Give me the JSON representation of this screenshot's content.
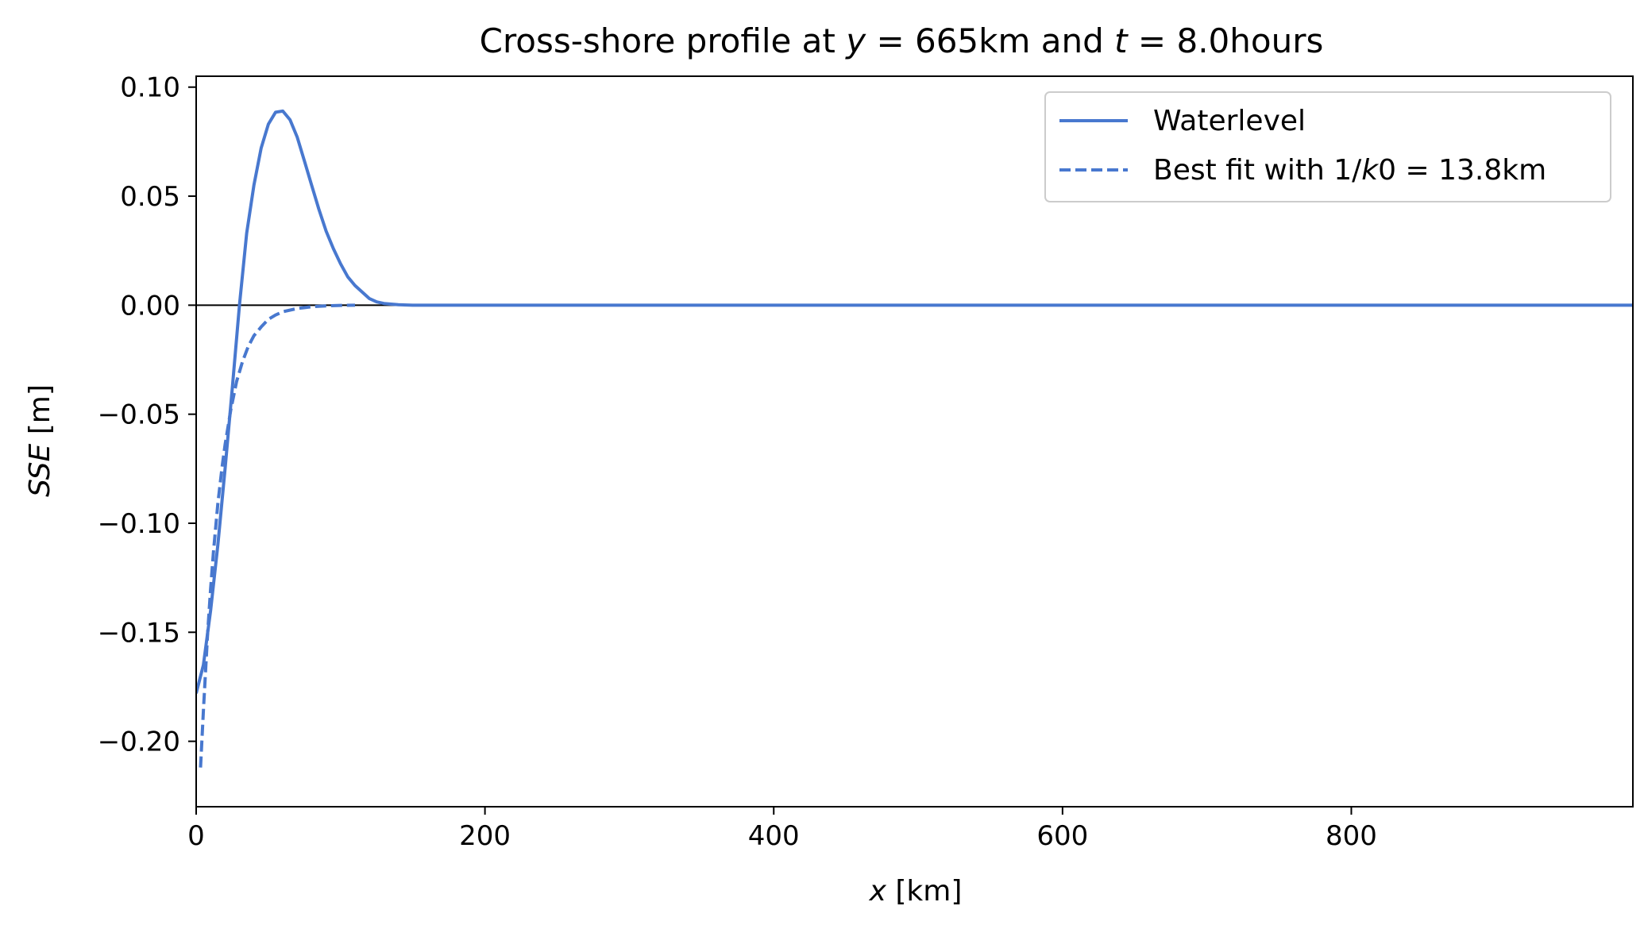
{
  "chart_data": {
    "type": "line",
    "title": "Cross-shore profile at y = 665km and t = 8.0hours",
    "title_parts": {
      "pre": "Cross-shore profile at ",
      "v1": "y",
      "mid": " = 665km and ",
      "v2": "t",
      "post": " = 8.0hours"
    },
    "xlabel_parts": {
      "var": "x",
      "rest": " [km]"
    },
    "ylabel_parts": {
      "var": "SSE",
      "rest": " [m]"
    },
    "xlim": [
      0,
      995
    ],
    "ylim": [
      -0.23,
      0.105
    ],
    "xticks": [
      0,
      200,
      400,
      600,
      800
    ],
    "xtick_labels": [
      "0",
      "200",
      "400",
      "600",
      "800"
    ],
    "yticks": [
      -0.2,
      -0.15,
      -0.1,
      -0.05,
      0.0,
      0.05,
      0.1
    ],
    "ytick_labels": [
      "−0.20",
      "−0.15",
      "−0.10",
      "−0.05",
      "0.00",
      "0.05",
      "0.10"
    ],
    "grid": false,
    "legend_position": "top-right",
    "zero_line": true,
    "series": [
      {
        "name": "Waterlevel",
        "style": "solid",
        "color": "#4878cf",
        "x": [
          0,
          5,
          10,
          15,
          20,
          25,
          30,
          35,
          40,
          45,
          50,
          55,
          60,
          65,
          70,
          75,
          80,
          85,
          90,
          95,
          100,
          105,
          110,
          115,
          120,
          125,
          130,
          140,
          150,
          160,
          180,
          200,
          250,
          300,
          400,
          500,
          600,
          700,
          800,
          900,
          995
        ],
        "y": [
          -0.178,
          -0.165,
          -0.14,
          -0.11,
          -0.075,
          -0.038,
          0.0,
          0.033,
          0.055,
          0.072,
          0.083,
          0.0885,
          0.089,
          0.085,
          0.077,
          0.066,
          0.055,
          0.044,
          0.034,
          0.026,
          0.019,
          0.013,
          0.009,
          0.006,
          0.003,
          0.0015,
          0.0008,
          0.0002,
          0.0,
          0.0,
          0.0,
          0.0,
          0.0,
          0.0,
          0.0,
          0.0,
          0.0,
          0.0,
          0.0,
          0.0,
          0.0
        ]
      },
      {
        "name": "Best fit with 1/k0 = 13.8km",
        "name_parts": {
          "pre": "Best fit with 1/",
          "var": "k",
          "post": "0 = 13.8km"
        },
        "style": "dashed",
        "color": "#4878cf",
        "x": [
          3,
          5,
          8,
          10,
          12,
          15,
          18,
          20,
          24,
          28,
          32,
          36,
          40,
          45,
          50,
          55,
          60,
          70,
          80,
          90,
          100,
          110
        ],
        "y": [
          -0.212,
          -0.186,
          -0.15,
          -0.13,
          -0.113,
          -0.091,
          -0.074,
          -0.064,
          -0.048,
          -0.035,
          -0.026,
          -0.019,
          -0.014,
          -0.01,
          -0.0065,
          -0.0045,
          -0.003,
          -0.0015,
          -0.0007,
          -0.0003,
          -0.0001,
          0.0
        ]
      }
    ]
  }
}
